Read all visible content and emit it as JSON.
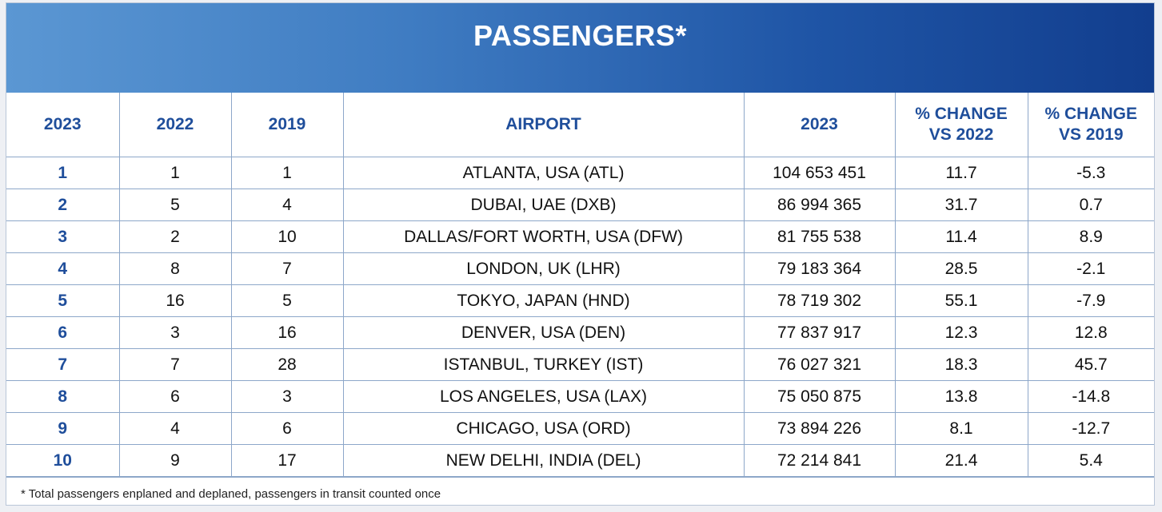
{
  "title": "PASSENGERS*",
  "columns": [
    "2023",
    "2022",
    "2019",
    "AIRPORT",
    "2023",
    "% CHANGE\nVS 2022",
    "% CHANGE\nVS 2019"
  ],
  "rows": [
    {
      "rank2023": "1",
      "rank2022": "1",
      "rank2019": "1",
      "airport": "ATLANTA, USA (ATL)",
      "passengers": "104 653 451",
      "chg2022": "11.7",
      "chg2019": "-5.3"
    },
    {
      "rank2023": "2",
      "rank2022": "5",
      "rank2019": "4",
      "airport": "DUBAI, UAE (DXB)",
      "passengers": "86 994 365",
      "chg2022": "31.7",
      "chg2019": "0.7"
    },
    {
      "rank2023": "3",
      "rank2022": "2",
      "rank2019": "10",
      "airport": "DALLAS/FORT WORTH, USA (DFW)",
      "passengers": "81 755 538",
      "chg2022": "11.4",
      "chg2019": "8.9"
    },
    {
      "rank2023": "4",
      "rank2022": "8",
      "rank2019": "7",
      "airport": "LONDON, UK (LHR)",
      "passengers": "79 183 364",
      "chg2022": "28.5",
      "chg2019": "-2.1"
    },
    {
      "rank2023": "5",
      "rank2022": "16",
      "rank2019": "5",
      "airport": "TOKYO, JAPAN (HND)",
      "passengers": "78 719 302",
      "chg2022": "55.1",
      "chg2019": "-7.9"
    },
    {
      "rank2023": "6",
      "rank2022": "3",
      "rank2019": "16",
      "airport": "DENVER, USA (DEN)",
      "passengers": "77 837 917",
      "chg2022": "12.3",
      "chg2019": "12.8"
    },
    {
      "rank2023": "7",
      "rank2022": "7",
      "rank2019": "28",
      "airport": "ISTANBUL, TURKEY (IST)",
      "passengers": "76 027 321",
      "chg2022": "18.3",
      "chg2019": "45.7"
    },
    {
      "rank2023": "8",
      "rank2022": "6",
      "rank2019": "3",
      "airport": "LOS ANGELES, USA (LAX)",
      "passengers": "75 050 875",
      "chg2022": "13.8",
      "chg2019": "-14.8"
    },
    {
      "rank2023": "9",
      "rank2022": "4",
      "rank2019": "6",
      "airport": "CHICAGO, USA (ORD)",
      "passengers": "73 894 226",
      "chg2022": "8.1",
      "chg2019": "-12.7"
    },
    {
      "rank2023": "10",
      "rank2022": "9",
      "rank2019": "17",
      "airport": "NEW DELHI, INDIA (DEL)",
      "passengers": "72 214 841",
      "chg2022": "21.4",
      "chg2019": "5.4"
    }
  ],
  "footnote": "* Total passengers enplaned and deplaned, passengers in transit counted once"
}
